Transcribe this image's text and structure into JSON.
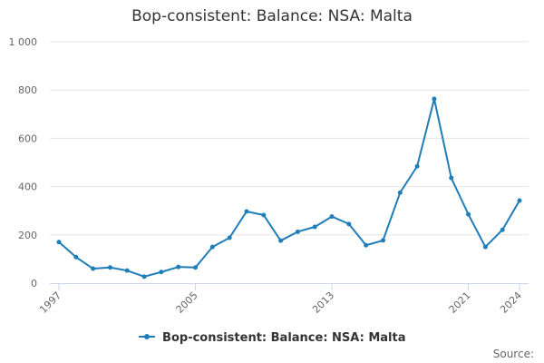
{
  "chart_data": {
    "type": "line",
    "title": "Bop-consistent: Balance: NSA: Malta",
    "x": [
      1997,
      1998,
      1999,
      2000,
      2001,
      2002,
      2003,
      2004,
      2005,
      2006,
      2007,
      2008,
      2009,
      2010,
      2011,
      2012,
      2013,
      2014,
      2015,
      2016,
      2017,
      2018,
      2019,
      2020,
      2021,
      2022,
      2023,
      2024
    ],
    "series": [
      {
        "name": "Bop-consistent: Balance: NSA: Malta",
        "color": "#1f7db8",
        "values": [
          170,
          108,
          60,
          65,
          52,
          27,
          46,
          67,
          65,
          150,
          188,
          297,
          282,
          176,
          213,
          233,
          276,
          245,
          157,
          177,
          375,
          484,
          763,
          436,
          285,
          150,
          221,
          342
        ]
      }
    ],
    "x_tick_labels": [
      "1997",
      "2005",
      "2013",
      "2021",
      "2024"
    ],
    "y_tick_labels": [
      "0",
      "200",
      "400",
      "600",
      "800",
      "1 000"
    ],
    "y_ticks": [
      0,
      200,
      400,
      600,
      800,
      1000
    ],
    "ylim": [
      0,
      1000
    ],
    "xlim": [
      1997,
      2024
    ],
    "grid": true,
    "legend_position": "bottom"
  },
  "source_label": "Source:"
}
